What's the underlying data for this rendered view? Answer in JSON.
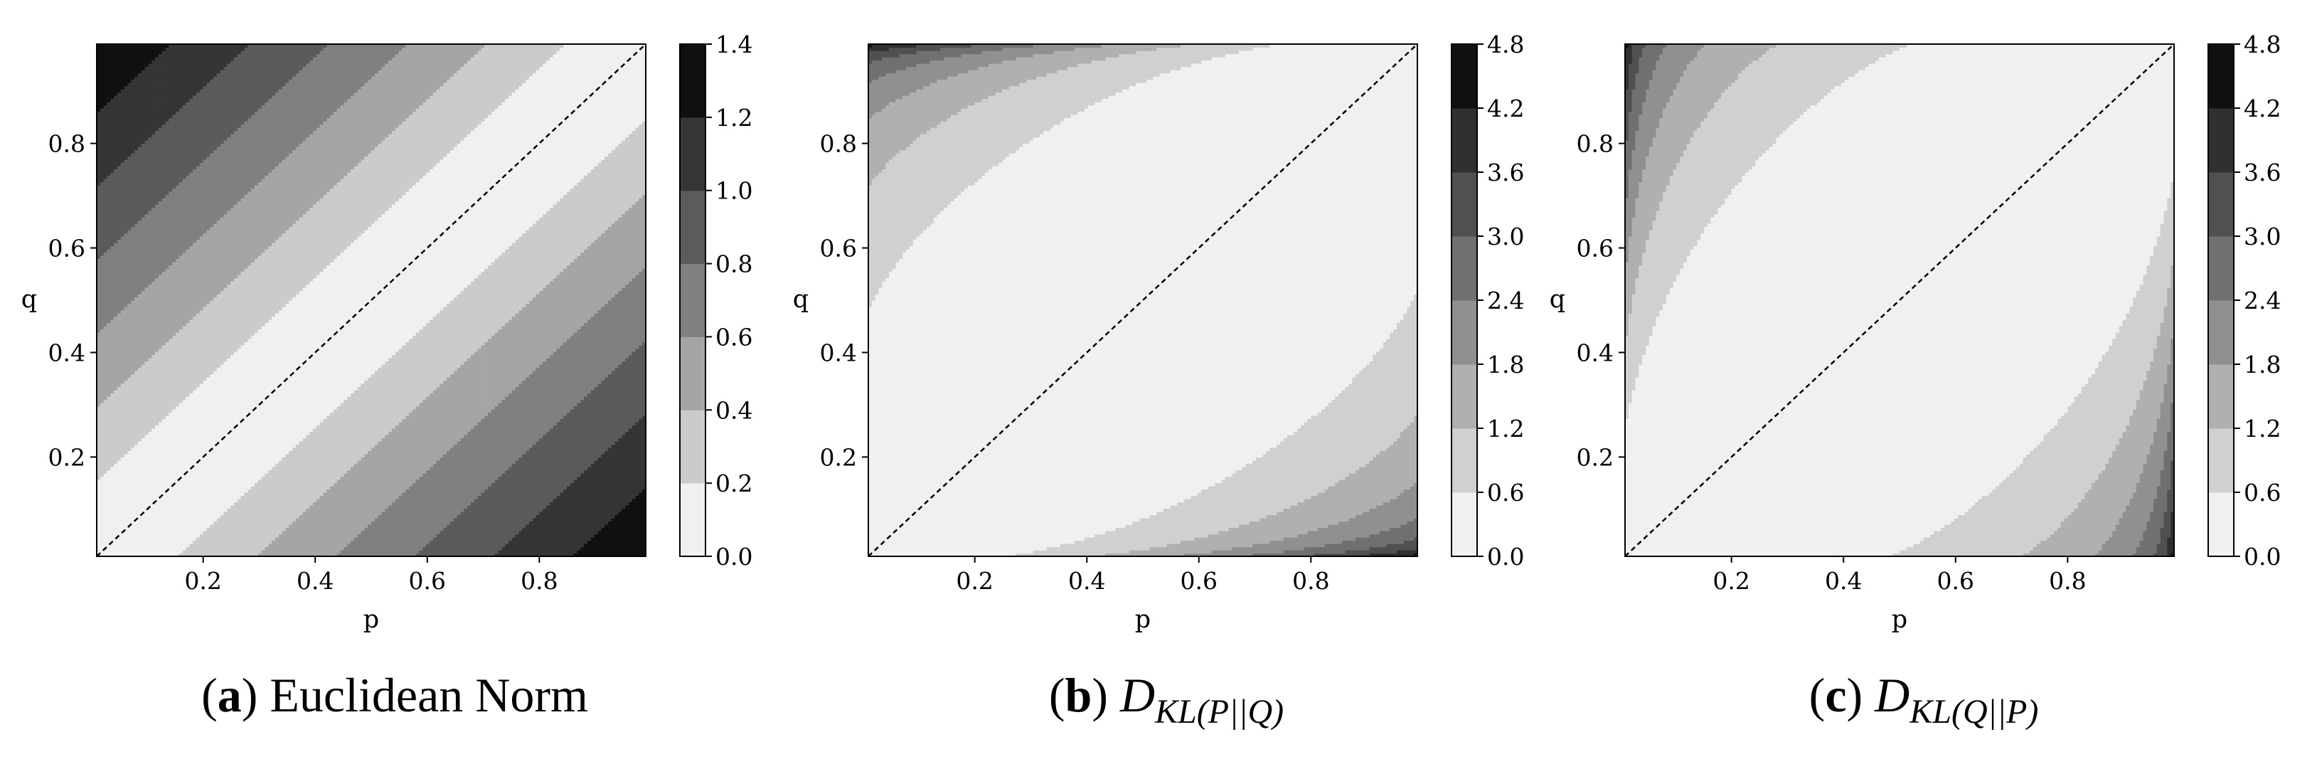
{
  "chart_data": [
    {
      "type": "contour",
      "function": "euclidean",
      "title": "",
      "xlabel": "p",
      "ylabel": "q",
      "xlim": [
        0.01,
        0.99
      ],
      "ylim": [
        0.01,
        0.99
      ],
      "xticks": [
        "0.2",
        "0.4",
        "0.6",
        "0.8"
      ],
      "yticks": [
        "0.2",
        "0.4",
        "0.6",
        "0.8"
      ],
      "levels": [
        0.0,
        0.2,
        0.4,
        0.6,
        0.8,
        1.0,
        1.2,
        1.4
      ],
      "colorbar_ticks": [
        "0.0",
        "0.2",
        "0.4",
        "0.6",
        "0.8",
        "1.0",
        "1.2",
        "1.4"
      ],
      "colormap": "greys",
      "diagonal_line": "dashed",
      "caption": {
        "letter": "a",
        "text": "Euclidean Norm"
      }
    },
    {
      "type": "contour",
      "function": "kl_pq",
      "title": "",
      "xlabel": "p",
      "ylabel": "q",
      "xlim": [
        0.01,
        0.99
      ],
      "ylim": [
        0.01,
        0.99
      ],
      "xticks": [
        "0.2",
        "0.4",
        "0.6",
        "0.8"
      ],
      "yticks": [
        "0.2",
        "0.4",
        "0.6",
        "0.8"
      ],
      "levels": [
        0.0,
        0.6,
        1.2,
        1.8,
        2.4,
        3.0,
        3.6,
        4.2,
        4.8
      ],
      "colorbar_ticks": [
        "0.0",
        "0.6",
        "1.2",
        "1.8",
        "2.4",
        "3.0",
        "3.6",
        "4.2",
        "4.8"
      ],
      "colormap": "greys",
      "diagonal_line": "dashed",
      "caption": {
        "letter": "b",
        "text": "",
        "math": "D",
        "math_sub": "KL(P||Q)"
      }
    },
    {
      "type": "contour",
      "function": "kl_qp",
      "title": "",
      "xlabel": "p",
      "ylabel": "q",
      "xlim": [
        0.01,
        0.99
      ],
      "ylim": [
        0.01,
        0.99
      ],
      "xticks": [
        "0.2",
        "0.4",
        "0.6",
        "0.8"
      ],
      "yticks": [
        "0.2",
        "0.4",
        "0.6",
        "0.8"
      ],
      "levels": [
        0.0,
        0.6,
        1.2,
        1.8,
        2.4,
        3.0,
        3.6,
        4.2,
        4.8
      ],
      "colorbar_ticks": [
        "0.0",
        "0.6",
        "1.2",
        "1.8",
        "2.4",
        "3.0",
        "3.6",
        "4.2",
        "4.8"
      ],
      "colormap": "greys",
      "diagonal_line": "dashed",
      "caption": {
        "letter": "c",
        "text": "",
        "math": "D",
        "math_sub": "KL(Q||P)"
      }
    }
  ]
}
